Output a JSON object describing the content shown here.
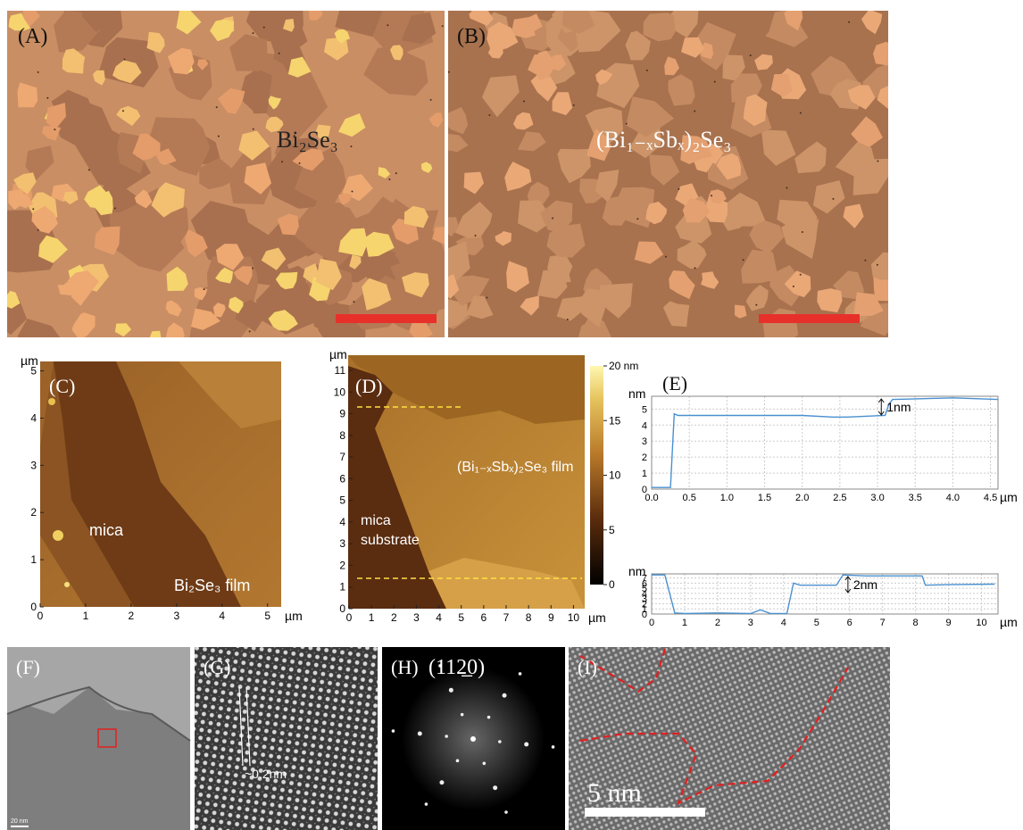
{
  "panels": {
    "A": {
      "label": "(A)",
      "material": "Bi₂Se₃"
    },
    "B": {
      "label": "(B)",
      "material": "(Bi₁₋ₓSbₓ)₂Se₃"
    },
    "C": {
      "label": "(C)",
      "unit": "µm",
      "xlim": [
        0,
        5.3
      ],
      "ylim": [
        0,
        5.2
      ],
      "xticks": [
        0,
        1,
        2,
        3,
        4,
        5
      ],
      "yticks": [
        0,
        1,
        2,
        3,
        4,
        5
      ],
      "region_labels": [
        "mica",
        "Bi₂Se₃ film"
      ]
    },
    "D": {
      "label": "(D)",
      "unit": "µm",
      "xlim": [
        0,
        10.5
      ],
      "ylim": [
        0,
        11.7
      ],
      "xticks": [
        0,
        1,
        2,
        3,
        4,
        5,
        6,
        7,
        8,
        9,
        10
      ],
      "yticks": [
        0,
        1,
        2,
        3,
        4,
        5,
        6,
        7,
        8,
        9,
        10,
        11
      ],
      "region_labels": [
        "mica",
        "substrate",
        "(Bi₁₋ₓSbₓ)₂Se₃ film"
      ],
      "colorbar": {
        "lim": [
          0,
          20
        ],
        "ticks": [
          {
            "value": 20,
            "label": "20 nm"
          },
          15,
          10,
          5,
          0
        ]
      }
    },
    "E": {
      "label": "(E)",
      "y_unit": "nm",
      "x_unit": "µm",
      "top": {
        "xlim": [
          0,
          4.6
        ],
        "ylim": [
          0,
          5.8
        ],
        "xticks": [
          {
            "value": 0,
            "label": "0.0"
          },
          0.5,
          {
            "value": 1,
            "label": "1.0"
          },
          1.5,
          {
            "value": 2,
            "label": "2.0"
          },
          2.5,
          {
            "value": 3,
            "label": "3.0"
          },
          3.5,
          {
            "value": 4,
            "label": "4.0"
          },
          4.5
        ],
        "yticks": [
          0,
          1,
          2,
          3,
          4,
          5
        ],
        "x": [
          0,
          0.25,
          0.3,
          0.35,
          1,
          2,
          2.4,
          2.6,
          3.1,
          3.15,
          3.2,
          4,
          4.6
        ],
        "values": [
          0.1,
          0.1,
          4.7,
          4.6,
          4.6,
          4.6,
          4.5,
          4.5,
          4.6,
          5.3,
          5.6,
          5.7,
          5.6
        ],
        "annotation": "1nm"
      },
      "bottom": {
        "xlim": [
          0,
          10.5
        ],
        "ylim": [
          0,
          7.8
        ],
        "xticks": [
          0,
          1,
          2,
          3,
          4,
          5,
          6,
          7,
          8,
          9,
          10
        ],
        "yticks": [
          0,
          1,
          2,
          3,
          4,
          5,
          6,
          7
        ],
        "x": [
          0,
          0.4,
          0.7,
          1,
          2,
          3,
          3.3,
          3.6,
          4.1,
          4.3,
          4.5,
          5.6,
          5.8,
          6.5,
          8.2,
          8.3,
          9,
          10.4
        ],
        "values": [
          7.6,
          7.6,
          0.2,
          0.1,
          0.2,
          0.1,
          0.8,
          0.1,
          0.1,
          6,
          5.6,
          5.6,
          7.6,
          7.4,
          7.4,
          5.6,
          5.7,
          5.8
        ],
        "annotation": "2nm"
      }
    },
    "F": {
      "label": "(F)",
      "scale_bar": "20 nm"
    },
    "G": {
      "label": "(G)",
      "spacing": "~0.2nm"
    },
    "H": {
      "label": "(H)",
      "index": "(112̲0)"
    },
    "I": {
      "label": "(I)",
      "scale_bar": "5 nm"
    }
  }
}
